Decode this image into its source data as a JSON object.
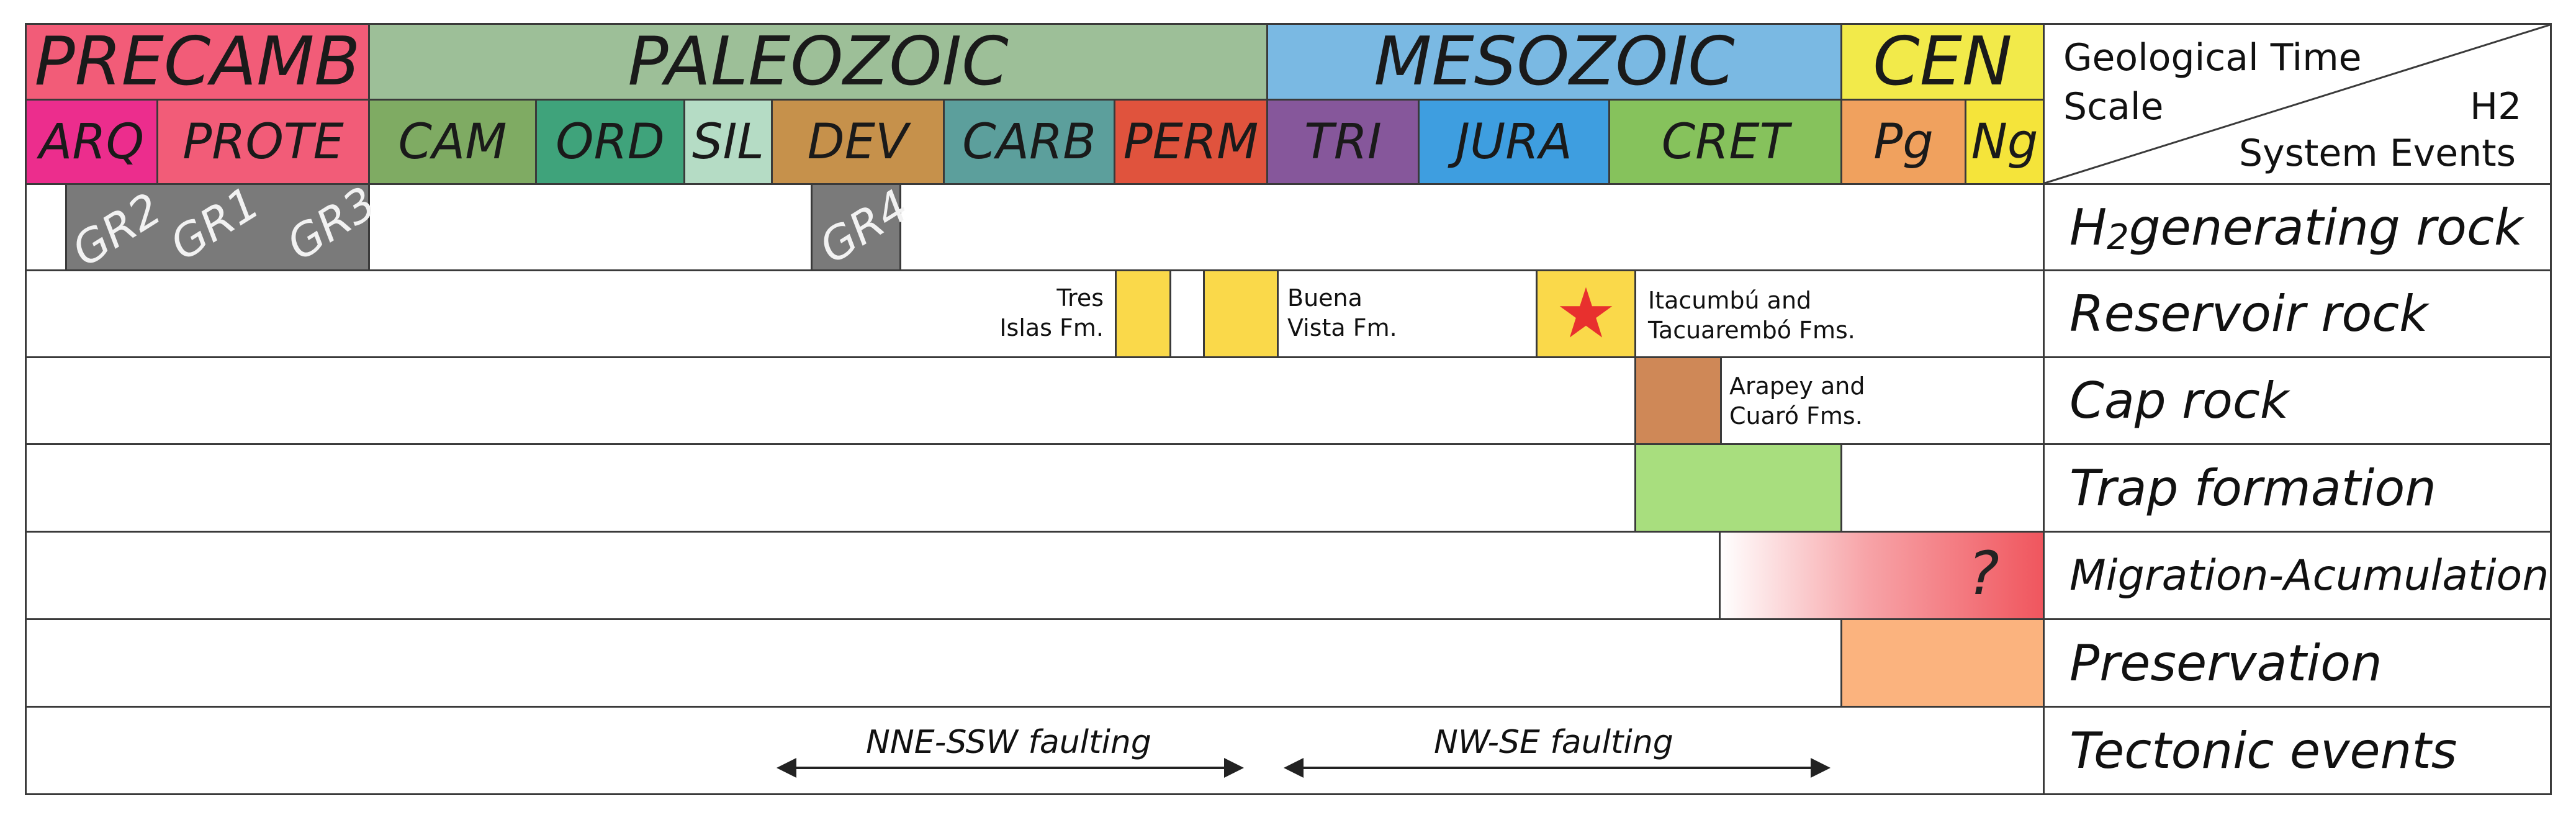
{
  "header": {
    "eras": [
      {
        "label": "PRECAMB",
        "color": "#f25c78"
      },
      {
        "label": "PALEOZOIC",
        "color": "#9dbf98"
      },
      {
        "label": "MESOZOIC",
        "color": "#7ab9e3"
      },
      {
        "label": "CEN",
        "color": "#f2ea4a"
      }
    ],
    "periods": [
      {
        "label": "ARQ",
        "color": "#ec2d8d"
      },
      {
        "label": "PROTE",
        "color": "#f25c78"
      },
      {
        "label": "CAM",
        "color": "#7fab63"
      },
      {
        "label": "ORD",
        "color": "#3fa37b"
      },
      {
        "label": "SIL",
        "color": "#b5dcc5"
      },
      {
        "label": "DEV",
        "color": "#c6914b"
      },
      {
        "label": "CARB",
        "color": "#5c9f9c"
      },
      {
        "label": "PERM",
        "color": "#e0533d"
      },
      {
        "label": "TRI",
        "color": "#86579b"
      },
      {
        "label": "JURA",
        "color": "#3e9ee0"
      },
      {
        "label": "CRET",
        "color": "#86c25c"
      },
      {
        "label": "Pg",
        "color": "#f0a15e"
      },
      {
        "label": "Ng",
        "color": "#f5e43a"
      }
    ],
    "corner": {
      "line1": "Geological Time",
      "line2": "Scale",
      "line3": "H2",
      "line4": "System Events"
    }
  },
  "rows": {
    "generating": {
      "label_main": "H",
      "label_sub": "2",
      "label_rest": " generating rock",
      "blocks": [
        "GR2",
        "GR1",
        "GR3",
        "GR4"
      ]
    },
    "reservoir": {
      "label": "Reservoir rock",
      "notes": {
        "tres_1": "Tres",
        "tres_2": "Islas Fm.",
        "buena_1": "Buena",
        "buena_2": "Vista Fm.",
        "ita_1": "Itacumbú and",
        "ita_2": "Tacuarembó Fms."
      },
      "fill_color": "#fad94a",
      "star_color": "#e8302e"
    },
    "cap": {
      "label": "Cap rock",
      "note_1": "Arapey and",
      "note_2": "Cuaró Fms.",
      "fill_color": "#cf8857"
    },
    "trap": {
      "label": "Trap formation",
      "fill_color": "#a8de7e"
    },
    "migration": {
      "label": "Migration-Acumulation",
      "mark": "?",
      "fill_color": "#f0565e"
    },
    "preservation": {
      "label": "Preservation",
      "fill_color": "#fbb37e"
    },
    "tectonic": {
      "label": "Tectonic events",
      "event_1": "NNE-SSW faulting",
      "event_2": "NW-SE faulting"
    }
  }
}
